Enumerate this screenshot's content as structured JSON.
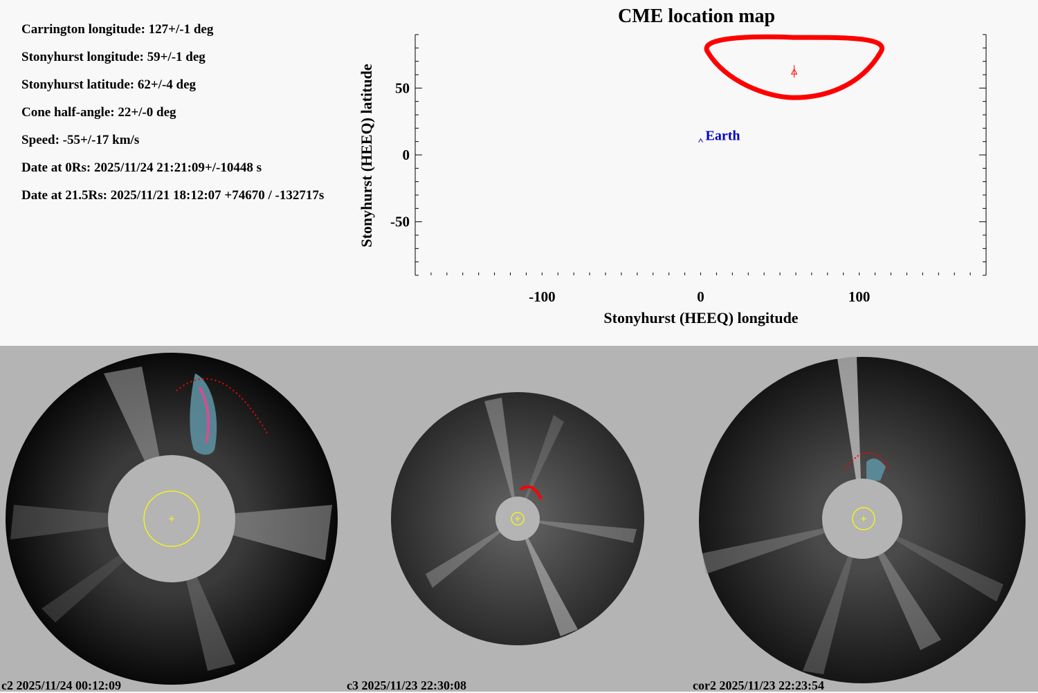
{
  "params": [
    "Carrington longitude: 127+/-1 deg",
    "Stonyhurst longitude: 59+/-1 deg",
    "Stonyhurst latitude: 62+/-4 deg",
    "Cone half-angle: 22+/-0 deg",
    "Speed: -55+/-17 km/s",
    "Date at 0Rs: 2025/11/24 21:21:09+/-10448 s",
    "Date at 21.5Rs: 2025/11/21 18:12:07 +74670 / -132717s"
  ],
  "chart_data": {
    "type": "scatter",
    "title": "CME location map",
    "xlabel": "Stonyhurst (HEEQ) longitude",
    "ylabel": "Stonyhurst (HEEQ) latitude",
    "xlim": [
      -180,
      180
    ],
    "ylim": [
      -90,
      90
    ],
    "xticks": [
      -100,
      0,
      100
    ],
    "yticks": [
      -50,
      0,
      50
    ],
    "cme_center": {
      "lon": 59,
      "lat": 62
    },
    "cone_outline_color": "#ff0000",
    "earth": {
      "label": "Earth",
      "lon": 0,
      "lat": 11,
      "color": "#0000cc"
    }
  },
  "panels": [
    {
      "caption": "c2 2025/11/24 00:12:09"
    },
    {
      "caption": "c3 2025/11/23 22:30:08"
    },
    {
      "caption": "cor2 2025/11/23 22:23:54"
    }
  ]
}
